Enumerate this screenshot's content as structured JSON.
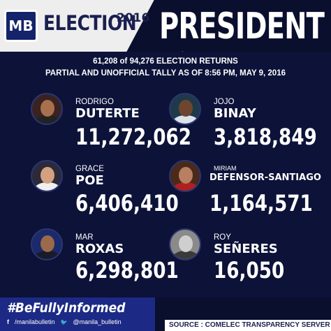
{
  "header": {
    "logo_text": "MB",
    "election_label": "ELECTION",
    "year": "2016",
    "position": "PRESIDENT"
  },
  "tally": {
    "returns_count": "61,208",
    "returns_rest": "of 94,276 ELECTION RETURNS",
    "status": "PARTIAL AND UNOFFICIAL TALLY AS OF 8:56 PM, MAY 9, 2016"
  },
  "candidates": [
    {
      "first": "RODRIGO",
      "last": "DUTERTE",
      "votes": "11,272,062"
    },
    {
      "first": "JOJO",
      "last": "BINAY",
      "votes": "3,818,849"
    },
    {
      "first": "GRACE",
      "last": "POE",
      "votes": "6,406,410"
    },
    {
      "first": "MIRIAM",
      "last": "DEFENSOR-SANTIAGO",
      "votes": "1,164,571"
    },
    {
      "first": "MAR",
      "last": "ROXAS",
      "votes": "6,298,801"
    },
    {
      "first": "ROY",
      "last": "SEÑERES",
      "votes": "16,050"
    }
  ],
  "footer": {
    "hashtag": "#BeFullyInformed",
    "facebook_icon": "f",
    "facebook": "/manilabulletin",
    "twitter_icon": "🐦",
    "twitter": "@manila_bulletin",
    "source": "SOURCE : COMELEC TRANSPARENCY SERVER"
  },
  "colors": {
    "background": "#0c1238",
    "header_light": "#eeeeee",
    "brand_blue": "#1c2a86"
  }
}
